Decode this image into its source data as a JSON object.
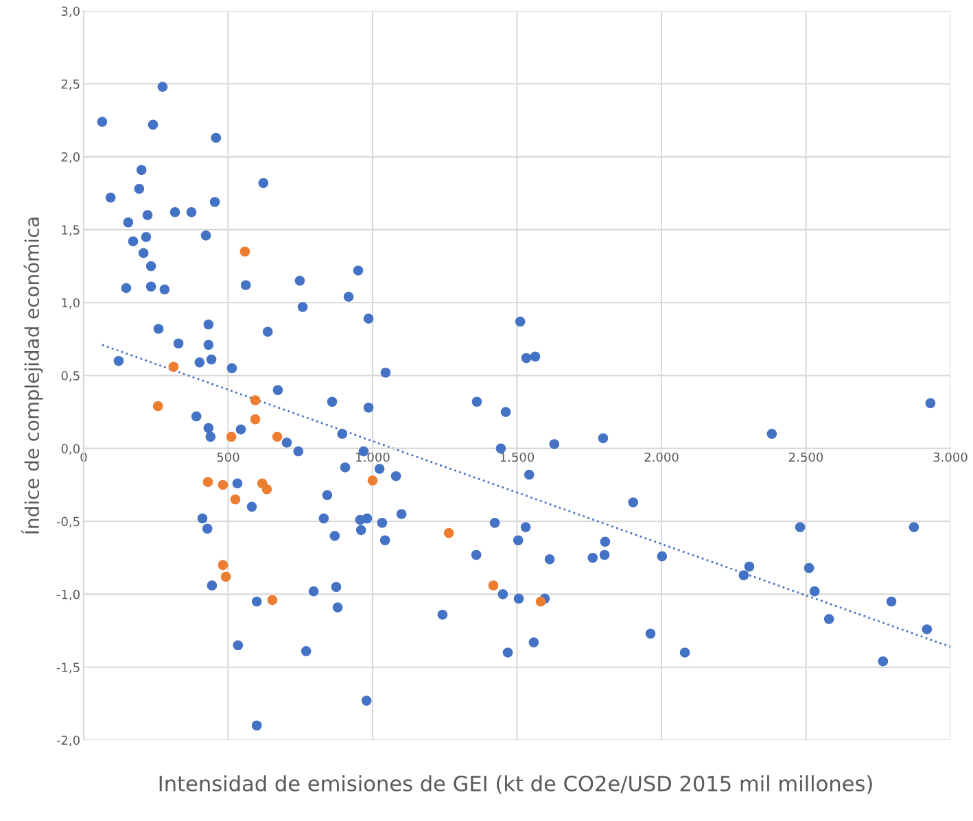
{
  "chart_data": {
    "type": "scatter",
    "xlabel": "Intensidad de emisiones de GEI (kt de CO2e/USD 2015 mil millones)",
    "ylabel": "Índice de complejidad económica",
    "xlim": [
      0,
      3000
    ],
    "ylim": [
      -2.0,
      3.0
    ],
    "xticks": [
      0,
      {
        "value": 500,
        "label": "500"
      },
      {
        "value": 1000,
        "label": "1.000"
      },
      {
        "value": 1500,
        "label": "1.500"
      },
      {
        "value": 2000,
        "label": "2.000"
      },
      {
        "value": 2500,
        "label": "2.500"
      },
      {
        "value": 3000,
        "label": "3.000"
      }
    ],
    "yticks": [
      {
        "value": -2.0,
        "label": "-2,0"
      },
      {
        "value": -1.5,
        "label": "-1,5"
      },
      {
        "value": -1.0,
        "label": "-1,0"
      },
      {
        "value": -0.5,
        "label": "-0,5"
      },
      {
        "value": 0.0,
        "label": "0,0"
      },
      {
        "value": 0.5,
        "label": "0,5"
      },
      {
        "value": 1.0,
        "label": "1,0"
      },
      {
        "value": 1.5,
        "label": "1,5"
      },
      {
        "value": 2.0,
        "label": "2,0"
      },
      {
        "value": 2.5,
        "label": "2,5"
      },
      {
        "value": 3.0,
        "label": "3,0"
      }
    ],
    "grid": true,
    "marker": "circle",
    "series": [
      {
        "color": "#4472c4",
        "x": [
          64,
          93,
          121,
          147,
          154,
          171,
          192,
          200,
          207,
          216,
          221,
          233,
          233,
          240,
          259,
          273,
          280,
          316,
          328,
          373,
          390,
          401,
          411,
          423,
          428,
          432,
          432,
          432,
          439,
          442,
          444,
          454,
          458,
          513,
          532,
          534,
          544,
          561,
          582,
          599,
          599,
          622,
          637,
          672,
          703,
          743,
          748,
          758,
          770,
          796,
          831,
          843,
          860,
          869,
          874,
          879,
          895,
          905,
          917,
          950,
          957,
          960,
          969,
          979,
          981,
          986,
          986,
          1024,
          1033,
          1043,
          1045,
          1081,
          1100,
          1242,
          1359,
          1361,
          1423,
          1444,
          1451,
          1461,
          1468,
          1504,
          1506,
          1511,
          1530,
          1532,
          1542,
          1558,
          1563,
          1596,
          1613,
          1629,
          1762,
          1798,
          1803,
          1805,
          1902,
          1962,
          2002,
          2081,
          2285,
          2304,
          2382,
          2480,
          2511,
          2530,
          2580,
          2767,
          2796,
          2874,
          2919,
          2931
        ],
        "values": [
          2.24,
          1.72,
          0.6,
          1.1,
          1.55,
          1.42,
          1.78,
          1.91,
          1.34,
          1.45,
          1.6,
          1.25,
          1.11,
          2.22,
          0.82,
          2.48,
          1.09,
          1.62,
          0.72,
          1.62,
          0.22,
          0.59,
          -0.48,
          1.46,
          -0.55,
          0.85,
          0.71,
          0.14,
          0.08,
          0.61,
          -0.94,
          1.69,
          2.13,
          0.55,
          -0.24,
          -1.35,
          0.13,
          1.12,
          -0.4,
          -1.05,
          -1.9,
          1.82,
          0.8,
          0.4,
          0.04,
          -0.02,
          1.15,
          0.97,
          -1.39,
          -0.98,
          -0.48,
          -0.32,
          0.32,
          -0.6,
          -0.95,
          -1.09,
          0.1,
          -0.13,
          1.04,
          1.22,
          -0.49,
          -0.56,
          -0.02,
          -1.73,
          -0.48,
          0.28,
          0.89,
          -0.14,
          -0.51,
          -0.63,
          0.52,
          -0.19,
          -0.45,
          -1.14,
          -0.73,
          0.32,
          -0.51,
          0.0,
          -1.0,
          0.25,
          -1.4,
          -0.63,
          -1.03,
          0.87,
          -0.54,
          0.62,
          -0.18,
          -1.33,
          0.63,
          -1.03,
          -0.76,
          0.03,
          -0.75,
          0.07,
          -0.73,
          -0.64,
          -0.37,
          -1.27,
          -0.74,
          -1.4,
          -0.87,
          -0.81,
          0.1,
          -0.54,
          -0.82,
          -0.98,
          -1.17,
          -1.46,
          -1.05,
          -0.54,
          -1.24,
          0.31
        ]
      },
      {
        "color": "#ed7d31",
        "x": [
          257,
          311,
          430,
          482,
          482,
          492,
          511,
          525,
          558,
          594,
          594,
          618,
          634,
          653,
          670,
          1000,
          1264,
          1418,
          1582
        ],
        "values": [
          0.29,
          0.56,
          -0.23,
          -0.25,
          -0.8,
          -0.88,
          0.08,
          -0.35,
          1.35,
          0.33,
          0.2,
          -0.24,
          -0.28,
          -1.04,
          0.08,
          -0.22,
          -0.58,
          -0.94,
          -1.05
        ]
      },
      {
        "type": "line",
        "color": "#4472c4",
        "line_style": "dotted",
        "marker": "none",
        "x": [
          64,
          3000
        ],
        "values": [
          0.71,
          -1.36
        ]
      }
    ]
  }
}
